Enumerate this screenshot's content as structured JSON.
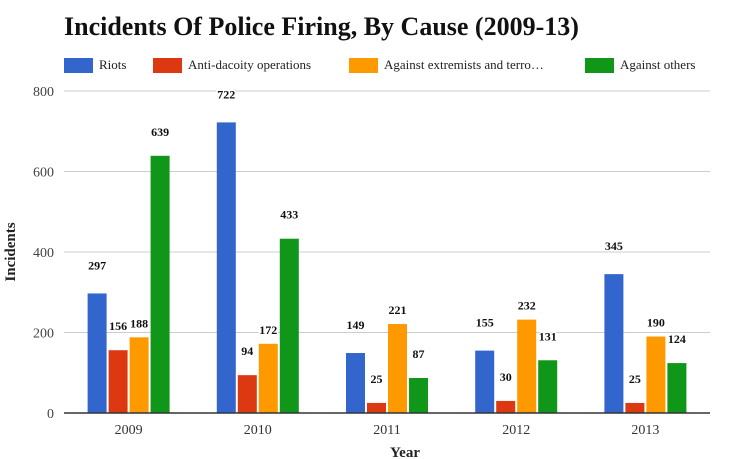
{
  "chart_data": {
    "type": "bar",
    "title": "Incidents Of Police Firing, By Cause (2009-13)",
    "xlabel": "Year",
    "ylabel": "Incidents",
    "categories": [
      "2009",
      "2010",
      "2011",
      "2012",
      "2013"
    ],
    "ylim": [
      0,
      800
    ],
    "yticks": [
      0,
      200,
      400,
      600,
      800
    ],
    "grid": true,
    "legend_position": "top",
    "series": [
      {
        "name": "Riots",
        "legend_label": "Riots",
        "color": "#3366cc",
        "values": [
          297,
          722,
          149,
          155,
          345
        ]
      },
      {
        "name": "Anti-dacoity operations",
        "legend_label": "Anti-dacoity operations",
        "color": "#dc3912",
        "values": [
          156,
          94,
          25,
          30,
          25
        ]
      },
      {
        "name": "Against extremists and terrorists",
        "legend_label": "Against extremists and terro…",
        "color": "#ff9900",
        "values": [
          188,
          172,
          221,
          232,
          190
        ]
      },
      {
        "name": "Against others",
        "legend_label": "Against others",
        "color": "#109618",
        "values": [
          639,
          433,
          87,
          131,
          124
        ]
      }
    ]
  }
}
